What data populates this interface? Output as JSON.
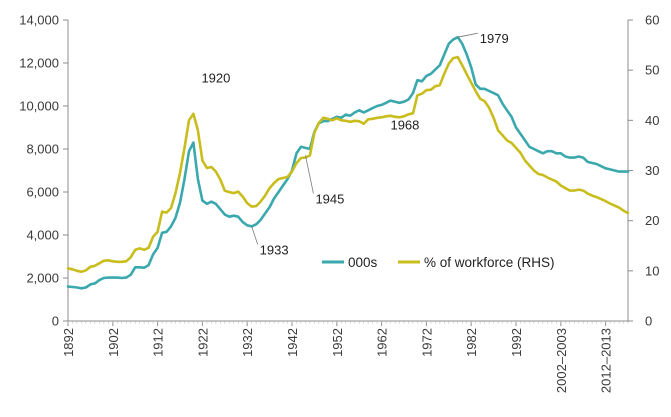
{
  "chart_data": {
    "type": "line",
    "title": "",
    "xlabel": "",
    "ylabel_left": "",
    "ylabel_right": "",
    "ylim_left": [
      0,
      14000
    ],
    "ylim_right": [
      0,
      60
    ],
    "xlim": [
      1892,
      2017
    ],
    "left_ticks": [
      {
        "value": 0,
        "label": "0"
      },
      {
        "value": 2000,
        "label": "2,000"
      },
      {
        "value": 4000,
        "label": "4,000"
      },
      {
        "value": 6000,
        "label": "6,000"
      },
      {
        "value": 8000,
        "label": "8,000"
      },
      {
        "value": 10000,
        "label": "10,000"
      },
      {
        "value": 12000,
        "label": "12,000"
      },
      {
        "value": 14000,
        "label": "14,000"
      }
    ],
    "right_ticks": [
      {
        "value": 0,
        "label": "0"
      },
      {
        "value": 10,
        "label": "10"
      },
      {
        "value": 20,
        "label": "20"
      },
      {
        "value": 30,
        "label": "30"
      },
      {
        "value": 40,
        "label": "40"
      },
      {
        "value": 50,
        "label": "50"
      },
      {
        "value": 60,
        "label": "60"
      }
    ],
    "x_ticks": [
      {
        "value": 1892,
        "label": "1892"
      },
      {
        "value": 1902,
        "label": "1902"
      },
      {
        "value": 1912,
        "label": "1912"
      },
      {
        "value": 1922,
        "label": "1922"
      },
      {
        "value": 1932,
        "label": "1932"
      },
      {
        "value": 1942,
        "label": "1942"
      },
      {
        "value": 1952,
        "label": "1952"
      },
      {
        "value": 1962,
        "label": "1962"
      },
      {
        "value": 1972,
        "label": "1972"
      },
      {
        "value": 1982,
        "label": "1982"
      },
      {
        "value": 1992,
        "label": "1992"
      },
      {
        "value": 2002,
        "label": "2002–2003"
      },
      {
        "value": 2012,
        "label": "2012–2013"
      }
    ],
    "legend_position": "lower-right inside plot",
    "grid": false,
    "annotations": [
      {
        "label": "1920",
        "x": 1920,
        "y": 8300,
        "axis": "left",
        "dx": 8,
        "dy": -60
      },
      {
        "label": "1933",
        "x": 1933,
        "y": 4400,
        "axis": "left",
        "dx": 8,
        "dy": 28,
        "leader": true
      },
      {
        "label": "1945",
        "x": 1945,
        "y": 7700,
        "axis": "left",
        "dx": 10,
        "dy": 48,
        "leader": true
      },
      {
        "label": "1968",
        "x": 1968,
        "y": 10300,
        "axis": "left",
        "dx": -18,
        "dy": 30
      },
      {
        "label": "1979",
        "x": 1979,
        "y": 13200,
        "axis": "left",
        "dx": 22,
        "dy": 6,
        "leader": true
      }
    ],
    "series": [
      {
        "name": "000s",
        "axis": "left",
        "color": "#3aa8ad",
        "x": [
          1892,
          1893,
          1894,
          1895,
          1896,
          1897,
          1898,
          1899,
          1900,
          1901,
          1902,
          1903,
          1904,
          1905,
          1906,
          1907,
          1908,
          1909,
          1910,
          1911,
          1912,
          1913,
          1914,
          1915,
          1916,
          1917,
          1918,
          1919,
          1920,
          1921,
          1922,
          1923,
          1924,
          1925,
          1926,
          1927,
          1928,
          1929,
          1930,
          1931,
          1932,
          1933,
          1934,
          1935,
          1936,
          1937,
          1938,
          1939,
          1940,
          1941,
          1942,
          1943,
          1944,
          1945,
          1946,
          1947,
          1948,
          1949,
          1950,
          1951,
          1952,
          1953,
          1954,
          1955,
          1956,
          1957,
          1958,
          1959,
          1960,
          1961,
          1962,
          1963,
          1964,
          1965,
          1966,
          1967,
          1968,
          1969,
          1970,
          1971,
          1972,
          1973,
          1974,
          1975,
          1976,
          1977,
          1978,
          1979,
          1980,
          1981,
          1982,
          1983,
          1984,
          1985,
          1986,
          1987,
          1988,
          1989,
          1990,
          1991,
          1992,
          1993,
          1994,
          1995,
          1996,
          1997,
          1998,
          1999,
          2000,
          2001,
          2002,
          2003,
          2004,
          2005,
          2006,
          2007,
          2008,
          2009,
          2010,
          2011,
          2012,
          2013,
          2014,
          2015,
          2016,
          2017
        ],
        "values": [
          1600,
          1580,
          1560,
          1520,
          1560,
          1700,
          1750,
          1900,
          2000,
          2020,
          2020,
          2020,
          2000,
          2020,
          2150,
          2500,
          2500,
          2480,
          2600,
          3100,
          3400,
          4100,
          4150,
          4400,
          4800,
          5500,
          6600,
          7900,
          8300,
          6600,
          5600,
          5450,
          5550,
          5450,
          5200,
          4950,
          4850,
          4900,
          4850,
          4600,
          4450,
          4400,
          4500,
          4700,
          5000,
          5300,
          5700,
          6000,
          6300,
          6600,
          7000,
          7800,
          8100,
          8050,
          8000,
          8800,
          9200,
          9300,
          9300,
          9400,
          9500,
          9450,
          9600,
          9550,
          9700,
          9800,
          9700,
          9800,
          9900,
          10000,
          10050,
          10150,
          10250,
          10200,
          10150,
          10200,
          10300,
          10600,
          11200,
          11150,
          11400,
          11500,
          11700,
          11900,
          12400,
          12900,
          13100,
          13200,
          12900,
          12400,
          11800,
          11000,
          10800,
          10800,
          10700,
          10600,
          10500,
          10100,
          9800,
          9500,
          9000,
          8700,
          8400,
          8100,
          8000,
          7900,
          7800,
          7900,
          7900,
          7800,
          7800,
          7650,
          7600,
          7600,
          7650,
          7600,
          7400,
          7350,
          7300,
          7200,
          7100,
          7050,
          7000,
          6950,
          6950,
          6950
        ]
      },
      {
        "name": "% of workforce (RHS)",
        "axis": "right",
        "color": "#c9bd1e",
        "x": [
          1892,
          1893,
          1894,
          1895,
          1896,
          1897,
          1898,
          1899,
          1900,
          1901,
          1902,
          1903,
          1904,
          1905,
          1906,
          1907,
          1908,
          1909,
          1910,
          1911,
          1912,
          1913,
          1914,
          1915,
          1916,
          1917,
          1918,
          1919,
          1920,
          1921,
          1922,
          1923,
          1924,
          1925,
          1926,
          1927,
          1928,
          1929,
          1930,
          1931,
          1932,
          1933,
          1934,
          1935,
          1936,
          1937,
          1938,
          1939,
          1940,
          1941,
          1942,
          1943,
          1944,
          1945,
          1946,
          1947,
          1948,
          1949,
          1950,
          1951,
          1952,
          1953,
          1954,
          1955,
          1956,
          1957,
          1958,
          1959,
          1960,
          1961,
          1962,
          1963,
          1964,
          1965,
          1966,
          1967,
          1968,
          1969,
          1970,
          1971,
          1972,
          1973,
          1974,
          1975,
          1976,
          1977,
          1978,
          1979,
          1980,
          1981,
          1982,
          1983,
          1984,
          1985,
          1986,
          1987,
          1988,
          1989,
          1990,
          1991,
          1992,
          1993,
          1994,
          1995,
          1996,
          1997,
          1998,
          1999,
          2000,
          2001,
          2002,
          2003,
          2004,
          2005,
          2006,
          2007,
          2008,
          2009,
          2010,
          2011,
          2012,
          2013,
          2014,
          2015,
          2016,
          2017
        ],
        "values": [
          10.5,
          10.3,
          10,
          9.8,
          10.1,
          10.8,
          11,
          11.5,
          12,
          12.1,
          11.9,
          11.8,
          11.8,
          11.9,
          12.7,
          14.2,
          14.5,
          14.2,
          14.6,
          16.8,
          17.8,
          21.8,
          21.6,
          22.5,
          25.5,
          29.5,
          34.5,
          40,
          41.3,
          38,
          32,
          30.5,
          30.7,
          29.8,
          28.2,
          26,
          25.7,
          25.5,
          25.8,
          24.8,
          23.5,
          22.8,
          22.9,
          23.8,
          25,
          26.5,
          27.5,
          28.3,
          28.5,
          28.7,
          29.8,
          31.5,
          32.5,
          32.6,
          33,
          37.5,
          39.5,
          40.5,
          40.3,
          40,
          40.4,
          40,
          39.9,
          39.7,
          39.9,
          39.8,
          39.3,
          40.2,
          40.3,
          40.5,
          40.6,
          40.8,
          40.9,
          40.7,
          40.6,
          40.8,
          41.2,
          41.4,
          45,
          45.3,
          46,
          46.1,
          46.8,
          47,
          49.3,
          51.3,
          52.4,
          52.6,
          51,
          49.2,
          47.5,
          45.8,
          44.3,
          43.8,
          42.5,
          40.5,
          38,
          37,
          36,
          35.5,
          34.5,
          33.5,
          32,
          31,
          30,
          29.3,
          29.1,
          28.6,
          28.2,
          27.8,
          27,
          26.5,
          26,
          26,
          26.2,
          26,
          25.4,
          25,
          24.7,
          24.3,
          23.9,
          23.4,
          23,
          22.6,
          22,
          21.5
        ]
      }
    ]
  }
}
